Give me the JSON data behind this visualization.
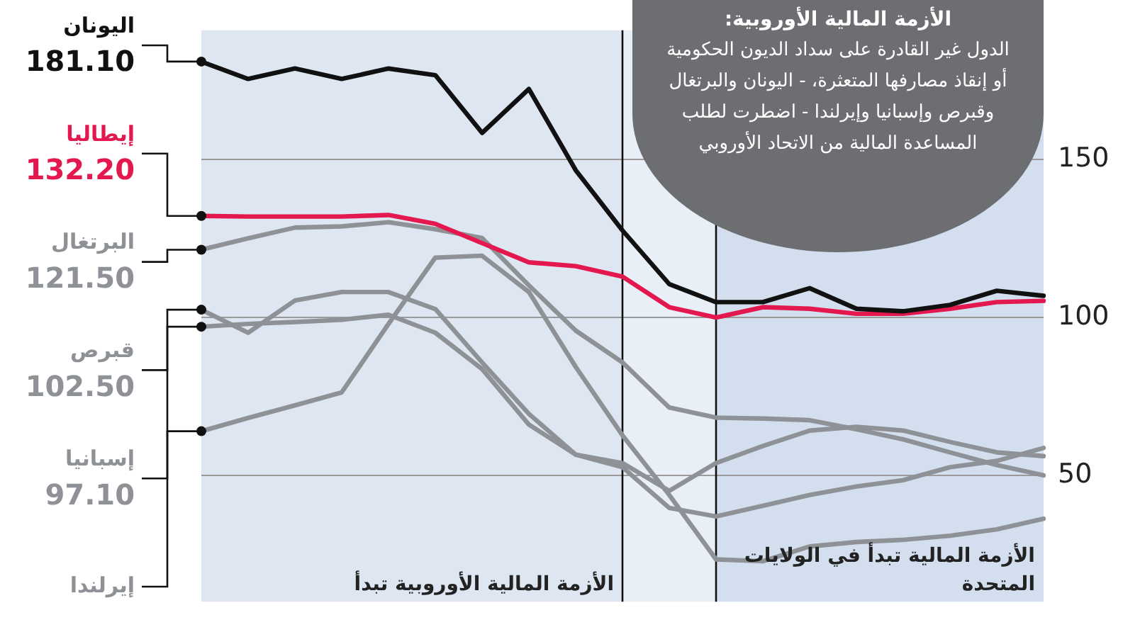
{
  "chart_data": {
    "type": "line",
    "categories": [
      null,
      null,
      null,
      null,
      null,
      null,
      null,
      null,
      null,
      null,
      null,
      null,
      null,
      null,
      null,
      null,
      null,
      null,
      null
    ],
    "series": [
      {
        "name": "اليونان",
        "color": "#111111",
        "values": [
          181.1,
          175.6,
          178.9,
          175.6,
          178.9,
          176.8,
          158.5,
          172.4,
          146.7,
          127.6,
          110.6,
          104.9,
          104.9,
          109.3,
          102.8,
          102,
          104,
          108.5,
          106.9
        ],
        "value_labels": [
          "181.10",
          null,
          null,
          null,
          null,
          null,
          null,
          null,
          null,
          null,
          null,
          null,
          null,
          null,
          null,
          null,
          null,
          null,
          null
        ]
      },
      {
        "name": "إيطاليا",
        "color": "#e3184e",
        "values": [
          132.2,
          132,
          132,
          132,
          132.5,
          129.7,
          123.6,
          117.5,
          116.3,
          113,
          103.3,
          100,
          103.3,
          102.8,
          101.2,
          101.2,
          102.8,
          104.9,
          105.3
        ],
        "value_labels": [
          "132.20",
          null,
          null,
          null,
          null,
          null,
          null,
          null,
          null,
          null,
          null,
          null,
          null,
          null,
          null,
          null,
          null,
          null,
          null
        ]
      },
      {
        "name": "البرتغال",
        "color": "#8e9196",
        "values": [
          121.5,
          125.1,
          128.5,
          128.9,
          130.2,
          128,
          125.2,
          110.2,
          95.9,
          85.8,
          71.5,
          68.3,
          68,
          67.5,
          64.6,
          61.4,
          57.3,
          53.3,
          50
        ],
        "value_labels": [
          "121.50",
          null,
          null,
          null,
          null,
          null,
          null,
          null,
          null,
          null,
          null,
          null,
          null,
          null,
          null,
          null,
          null,
          null,
          null
        ]
      },
      {
        "name": "قبرص",
        "color": "#8e9196",
        "values": [
          102.5,
          95.2,
          105.4,
          108.1,
          108.1,
          102.7,
          85.8,
          69.5,
          56.6,
          53.9,
          45.1,
          53.9,
          59.3,
          64.2,
          65.4,
          64.2,
          60.6,
          57.3,
          56.1
        ],
        "value_labels": [
          "102.50",
          null,
          null,
          null,
          null,
          null,
          null,
          null,
          null,
          null,
          null,
          null,
          null,
          null,
          null,
          null,
          null,
          null,
          null
        ]
      },
      {
        "name": "إسبانيا",
        "color": "#8e9196",
        "values": [
          97.1,
          98,
          98.6,
          99.3,
          100.9,
          95.2,
          83.7,
          66.1,
          56.6,
          52.6,
          39.7,
          37,
          40.4,
          43.8,
          46.5,
          48.5,
          52.6,
          54.6,
          58.7
        ],
        "value_labels": [
          "97.10",
          null,
          null,
          null,
          null,
          null,
          null,
          null,
          null,
          null,
          null,
          null,
          null,
          null,
          null,
          null,
          null,
          null,
          null
        ]
      },
      {
        "name": "إيرلندا",
        "color": "#8e9196",
        "values": [
          64,
          68.2,
          72.2,
          76.3,
          98,
          119,
          119.6,
          108.1,
          84.4,
          62.7,
          43.8,
          23.4,
          22.8,
          27.5,
          28.9,
          29.6,
          30.9,
          32.9,
          36.3
        ]
      }
    ],
    "ylim": [
      10,
      191
    ],
    "yticks": [
      50,
      100,
      150
    ],
    "grid": "y",
    "legend": false,
    "tick_labels": "y",
    "annotations": [
      "الأزمة المالية الأوروبية:",
      "الدول غير القادرة على سداد الديون الحكومية أو إنقاذ مصارفها المتعثرة، - اليونان والبرتغال وقبرص وإسبانيا وإيرلندا - اضطرت لطلب المساعدة المالية من الاتحاد الأوروبي",
      "الأزمة المالية الأوروبية تبدأ",
      "الأزمة المالية تبدأ في الولايات المتحدة"
    ]
  }
}
